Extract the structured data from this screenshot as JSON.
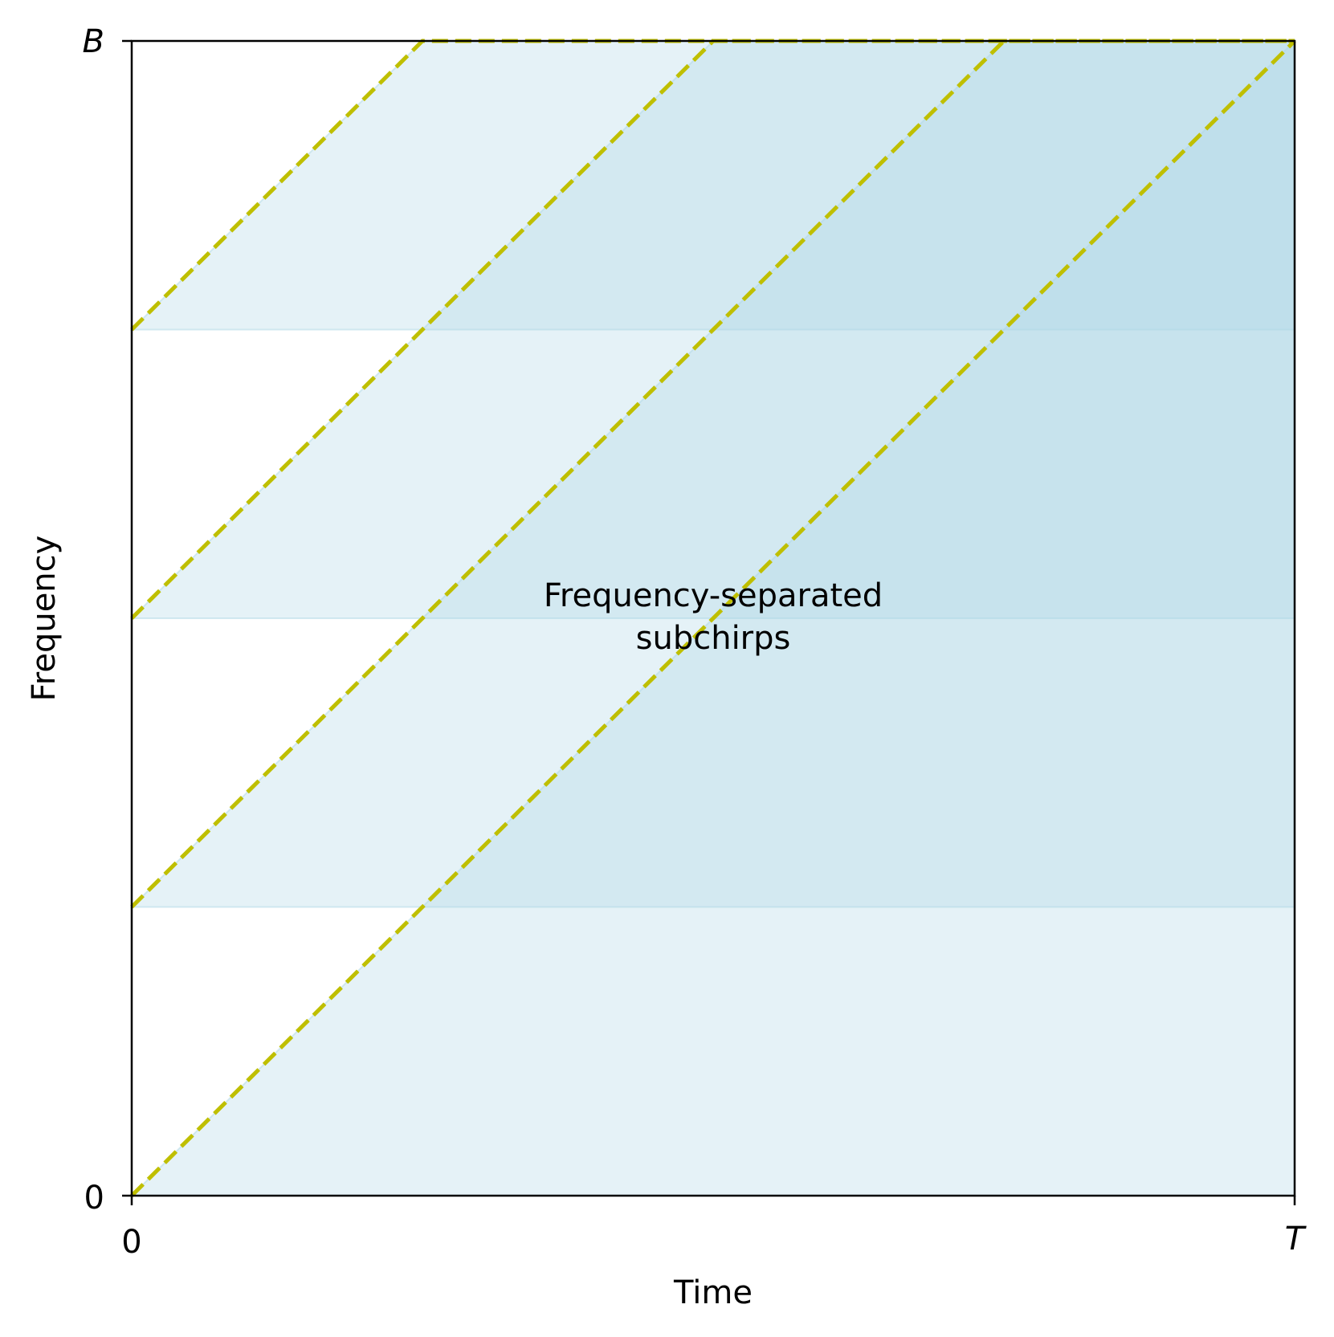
{
  "chart_data": {
    "type": "area",
    "annotation": [
      "Frequency-separated",
      "subchirps"
    ],
    "xlabel": "Time",
    "ylabel": "Frequency",
    "xlim": [
      0,
      1
    ],
    "ylim": [
      0,
      1
    ],
    "x_ticks": [
      {
        "value": 0,
        "label": "0"
      },
      {
        "value": 1,
        "label": "T"
      }
    ],
    "y_ticks": [
      {
        "value": 0,
        "label": "0"
      },
      {
        "value": 1,
        "label": "B"
      }
    ],
    "grid": false,
    "subchirps": [
      {
        "start_freq": 0.0,
        "slope": 1
      },
      {
        "start_freq": 0.25,
        "slope": 1
      },
      {
        "start_freq": 0.5,
        "slope": 1
      },
      {
        "start_freq": 0.75,
        "slope": 1
      }
    ],
    "colors": {
      "fill": "#add8e6",
      "line": "#bfbf00",
      "axes": "#000000"
    }
  }
}
